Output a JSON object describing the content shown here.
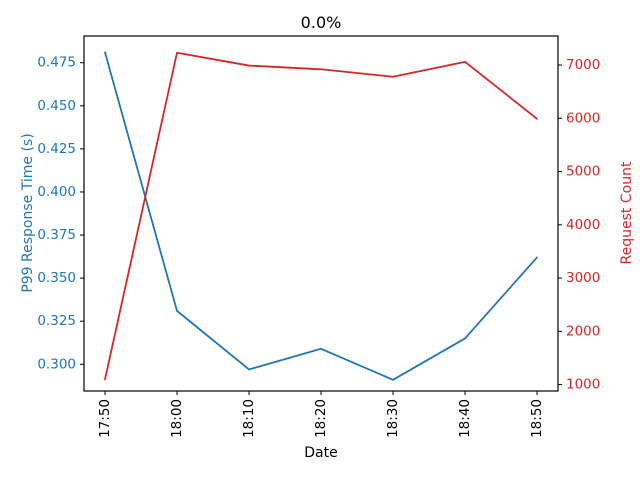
{
  "figure": {
    "background": "#ffffff",
    "spine_color": "#000000",
    "text_color": "#000000"
  },
  "chart_data": {
    "type": "line",
    "title": "0.0%",
    "xlabel": "Date",
    "grid": false,
    "legend": null,
    "x_categories": [
      "17:50",
      "18:00",
      "18:10",
      "18:20",
      "18:30",
      "18:40",
      "18:50"
    ],
    "x_tick_rotation": -90,
    "series": [
      {
        "name": "P99 Response Time (s)",
        "axis": "left",
        "color": "#1f77b4",
        "values": [
          0.481,
          0.331,
          0.297,
          0.309,
          0.291,
          0.315,
          0.362
        ]
      },
      {
        "name": "Request Count",
        "axis": "right",
        "color": "#d62728",
        "values": [
          1100,
          7230,
          6990,
          6920,
          6780,
          7060,
          5990
        ]
      }
    ],
    "left_axis": {
      "label": "P99 Response Time (s)",
      "color": "#1f77b4",
      "tick_values": [
        0.3,
        0.325,
        0.35,
        0.375,
        0.4,
        0.425,
        0.45,
        0.475
      ],
      "tick_labels": [
        "0.300",
        "0.325",
        "0.350",
        "0.375",
        "0.400",
        "0.425",
        "0.450",
        "0.475"
      ],
      "lim": [
        0.2845,
        0.4905
      ]
    },
    "right_axis": {
      "label": "Request Count",
      "color": "#d62728",
      "tick_values": [
        1000,
        2000,
        3000,
        4000,
        5000,
        6000,
        7000
      ],
      "tick_labels": [
        "1000",
        "2000",
        "3000",
        "4000",
        "5000",
        "6000",
        "7000"
      ],
      "lim": [
        880,
        7545
      ]
    }
  }
}
